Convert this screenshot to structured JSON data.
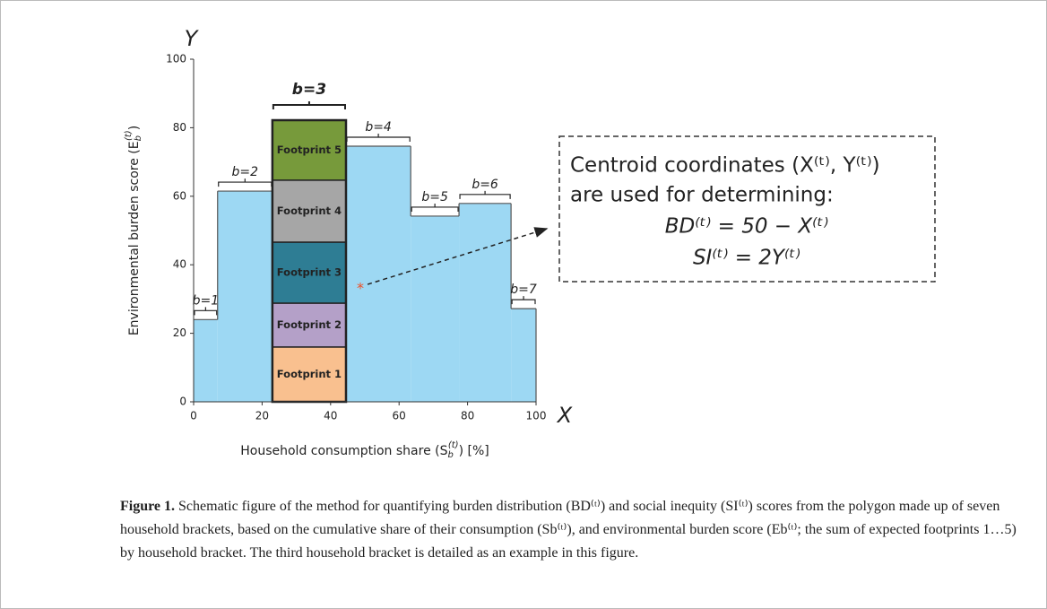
{
  "chart_data": {
    "type": "histogram",
    "categories": [
      "b=1",
      "b=2",
      "b=3",
      "b=4",
      "b=5",
      "b=6",
      "b=7"
    ],
    "bins": [
      0,
      7,
      23,
      44.5,
      63.4,
      77.5,
      92.7,
      100
    ],
    "values": [
      24,
      61.5,
      82.2,
      74.6,
      54.2,
      57.9,
      27.2
    ],
    "color": "#9dd8f3",
    "edge_color": "#555555",
    "xlim": [
      0,
      100
    ],
    "ylim": [
      0,
      100
    ],
    "xticks": [
      0,
      20,
      40,
      60,
      80,
      100
    ],
    "yticks": [
      0,
      20,
      40,
      60,
      80,
      100
    ],
    "x_axis_name": "X",
    "y_axis_name": "Y",
    "xlabel": {
      "text": "Household consumption share (S",
      "sub": "b",
      "sup": "(t)",
      "end": ") [%]"
    },
    "ylabel": {
      "text": "Environmental burden score (E",
      "sub": "b",
      "sup": "(t)",
      "end": ")"
    },
    "stack_series": [
      {
        "name": "Footprint 1",
        "color": "#f9c08f",
        "value": 16
      },
      {
        "name": "Footprint 2",
        "color": "#b4a0c8",
        "value": 12.8
      },
      {
        "name": "Footprint 3",
        "color": "#2e7d94",
        "value": 17.8
      },
      {
        "name": "Footprint 4",
        "color": "#a6a6a6",
        "value": 18.1
      },
      {
        "name": "Footprint 5",
        "color": "#779a3b",
        "value": 17.5
      }
    ],
    "centroid": {
      "x": 48.7,
      "y": 33.5,
      "color": "#f04e23"
    },
    "annotation": [
      "Centroid coordinates (X⁽ᵗ⁾, Y⁽ᵗ⁾)",
      "are used for determining:",
      "BD⁽ᵗ⁾ = 50 − X⁽ᵗ⁾",
      "SI⁽ᵗ⁾ = 2Y⁽ᵗ⁾"
    ]
  },
  "caption": {
    "label": "Figure 1.",
    "text": "Schematic figure of the method for quantifying burden distribution (BD⁽ᵗ⁾) and social inequity (SI⁽ᵗ⁾) scores from the polygon made up of seven household brackets, based on the cumulative share of their consumption (Sb⁽ᵗ⁾), and environmental burden score (Eb⁽ᵗ⁾; the sum of expected footprints 1…5) by household bracket. The third household bracket is detailed as an example in this figure."
  }
}
